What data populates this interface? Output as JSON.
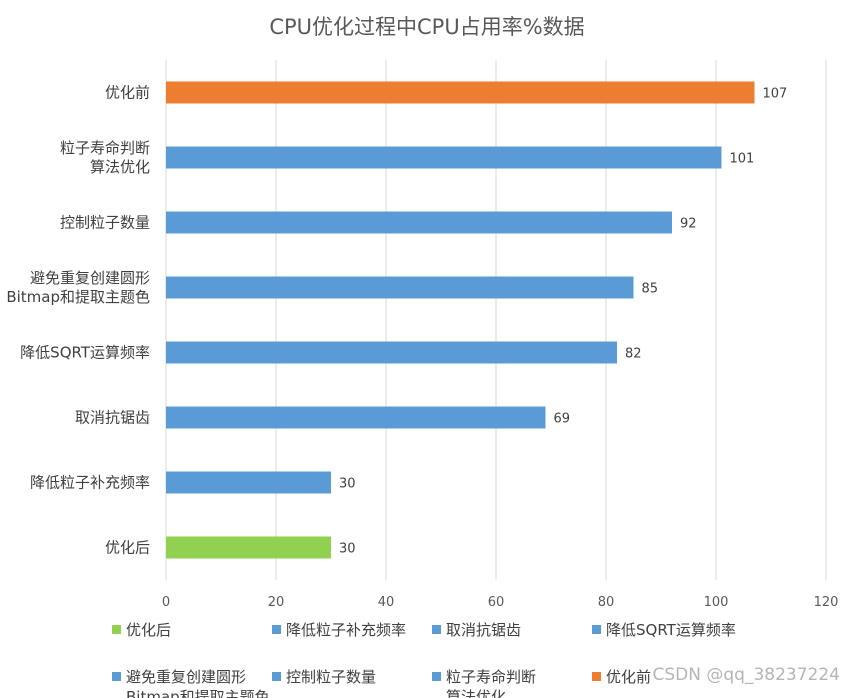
{
  "chart_data": {
    "type": "bar",
    "orientation": "horizontal",
    "title": "CPU优化过程中CPU占用率%数据",
    "xlabel": "",
    "ylabel": "",
    "xlim": [
      0,
      120
    ],
    "xticks": [
      0,
      20,
      40,
      60,
      80,
      100,
      120
    ],
    "grid": true,
    "legend_position": "bottom",
    "categories": [
      "优化前",
      "粒子寿命判断\n算法优化",
      "控制粒子数量",
      "避免重复创建圆形\nBitmap和提取主题色",
      "降低SQRT运算频率",
      "取消抗锯齿",
      "降低粒子补充频率",
      "优化后"
    ],
    "values": [
      107,
      101,
      92,
      85,
      82,
      69,
      30,
      30
    ],
    "colors": [
      "#ED7D31",
      "#5B9BD5",
      "#5B9BD5",
      "#5B9BD5",
      "#5B9BD5",
      "#5B9BD5",
      "#5B9BD5",
      "#92D050"
    ],
    "legend": [
      {
        "label": "优化后",
        "color": "#92D050"
      },
      {
        "label": "降低粒子补充频率",
        "color": "#5B9BD5"
      },
      {
        "label": "取消抗锯齿",
        "color": "#5B9BD5"
      },
      {
        "label": "降低SQRT运算频率",
        "color": "#5B9BD5"
      },
      {
        "label": "避免重复创建圆形\nBitmap和提取主题色",
        "color": "#5B9BD5"
      },
      {
        "label": "控制粒子数量",
        "color": "#5B9BD5"
      },
      {
        "label": "粒子寿命判断\n算法优化",
        "color": "#5B9BD5"
      },
      {
        "label": "优化前",
        "color": "#ED7D31"
      }
    ]
  },
  "watermark": "CSDN @qq_38237224"
}
